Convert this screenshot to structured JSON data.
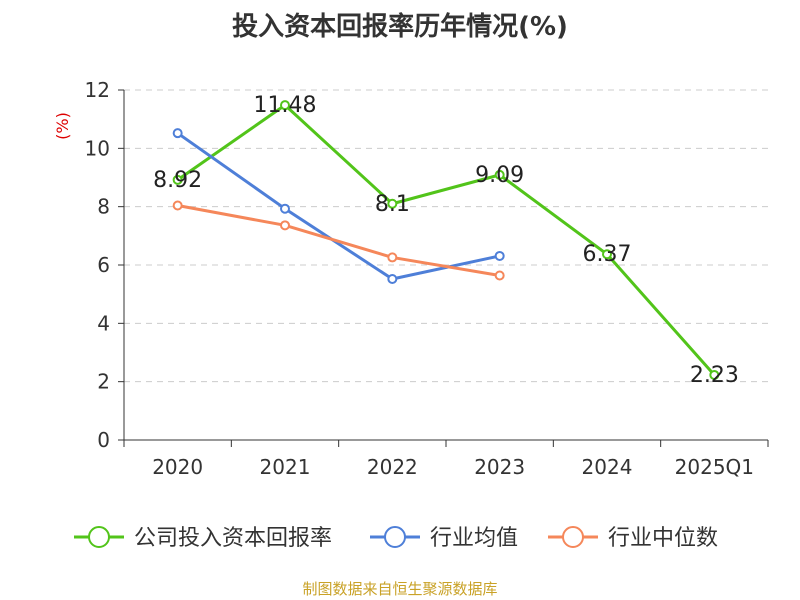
{
  "chart_data": {
    "type": "line",
    "title": "投入资本回报率历年情况(%)",
    "ylabel": "(%)",
    "categories": [
      "2020",
      "2021",
      "2022",
      "2023",
      "2024",
      "2025Q1"
    ],
    "y_ticks": [
      "0",
      "2",
      "4",
      "6",
      "8",
      "10",
      "12"
    ],
    "ylim": [
      0,
      12
    ],
    "grid": true,
    "legend_position": "bottom",
    "series": [
      {
        "name": "公司投入资本回报率",
        "color": "#52c41a",
        "values": [
          8.92,
          11.48,
          8.1,
          9.09,
          6.37,
          2.23
        ],
        "labels": [
          "8.92",
          "11.48",
          "8.1",
          "9.09",
          "6.37",
          "2.23"
        ]
      },
      {
        "name": "行业均值",
        "color": "#4e7fd8",
        "values": [
          10.52,
          7.93,
          5.52,
          6.31,
          null,
          null
        ]
      },
      {
        "name": "行业中位数",
        "color": "#f5875a",
        "values": [
          8.04,
          7.36,
          6.26,
          5.64,
          null,
          null
        ]
      }
    ]
  },
  "source": "制图数据来自恒生聚源数据库"
}
